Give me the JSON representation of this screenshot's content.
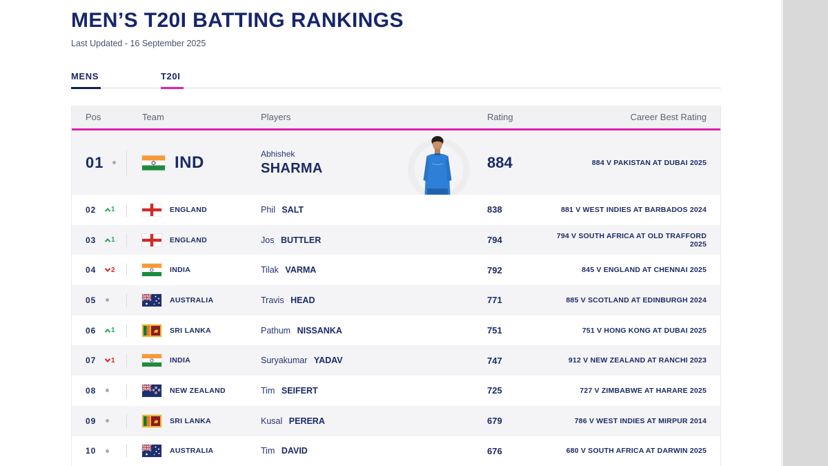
{
  "page": {
    "title": "MEN’S T20I BATTING RANKINGS",
    "last_updated": "Last Updated - 16 September 2025"
  },
  "tabs": [
    {
      "label": "MENS",
      "underline_color": "#141f4d",
      "active": true
    },
    {
      "label": "T20I",
      "underline_color": "#e01fad",
      "active": true
    }
  ],
  "colors": {
    "navy_text": "#1b2a66",
    "accent_pink": "#e01fad",
    "gain_green": "#1fa956",
    "loss_red": "#e02121",
    "row_alt_bg": "#f4f4f6",
    "header_bg": "#f1f1f4",
    "side_strip": "#d9d9d9"
  },
  "table": {
    "headers": {
      "pos": "Pos",
      "team": "Team",
      "players": "Players",
      "rating": "Rating",
      "career_best": "Career Best Rating"
    },
    "rows": [
      {
        "pos": "01",
        "movement": {
          "dir": "none"
        },
        "flag": "india",
        "team_label": "IND",
        "player_first": "Abhishek",
        "player_last": "SHARMA",
        "rating": "884",
        "career_best": "884 V PAKISTAN AT DUBAI 2025",
        "featured": true,
        "photo": "player-photo"
      },
      {
        "pos": "02",
        "movement": {
          "dir": "up",
          "value": "1"
        },
        "flag": "england",
        "team_label": "ENGLAND",
        "player_first": "Phil",
        "player_last": "SALT",
        "rating": "838",
        "career_best": "881 V WEST INDIES AT BARBADOS 2024"
      },
      {
        "pos": "03",
        "movement": {
          "dir": "up",
          "value": "1"
        },
        "flag": "england",
        "team_label": "ENGLAND",
        "player_first": "Jos",
        "player_last": "BUTTLER",
        "rating": "794",
        "career_best": "794 V SOUTH AFRICA AT OLD TRAFFORD 2025"
      },
      {
        "pos": "04",
        "movement": {
          "dir": "down",
          "value": "2"
        },
        "flag": "india",
        "team_label": "INDIA",
        "player_first": "Tilak",
        "player_last": "VARMA",
        "rating": "792",
        "career_best": "845 V ENGLAND AT CHENNAI 2025"
      },
      {
        "pos": "05",
        "movement": {
          "dir": "none"
        },
        "flag": "australia",
        "team_label": "AUSTRALIA",
        "player_first": "Travis",
        "player_last": "HEAD",
        "rating": "771",
        "career_best": "885 V SCOTLAND AT EDINBURGH 2024"
      },
      {
        "pos": "06",
        "movement": {
          "dir": "up",
          "value": "1"
        },
        "flag": "srilanka",
        "team_label": "SRI LANKA",
        "player_first": "Pathum",
        "player_last": "NISSANKA",
        "rating": "751",
        "career_best": "751 V HONG KONG AT DUBAI 2025"
      },
      {
        "pos": "07",
        "movement": {
          "dir": "down",
          "value": "1"
        },
        "flag": "india",
        "team_label": "INDIA",
        "player_first": "Suryakumar",
        "player_last": "YADAV",
        "rating": "747",
        "career_best": "912 V NEW ZEALAND AT RANCHI 2023"
      },
      {
        "pos": "08",
        "movement": {
          "dir": "none"
        },
        "flag": "newzealand",
        "team_label": "NEW ZEALAND",
        "player_first": "Tim",
        "player_last": "SEIFERT",
        "rating": "725",
        "career_best": "727 V ZIMBABWE AT HARARE 2025"
      },
      {
        "pos": "09",
        "movement": {
          "dir": "none"
        },
        "flag": "srilanka",
        "team_label": "SRI LANKA",
        "player_first": "Kusal",
        "player_last": "PERERA",
        "rating": "679",
        "career_best": "786 V WEST INDIES AT MIRPUR 2014"
      },
      {
        "pos": "10",
        "movement": {
          "dir": "none"
        },
        "flag": "australia",
        "team_label": "AUSTRALIA",
        "player_first": "Tim",
        "player_last": "DAVID",
        "rating": "676",
        "career_best": "680 V SOUTH AFRICA AT DARWIN 2025"
      }
    ]
  }
}
